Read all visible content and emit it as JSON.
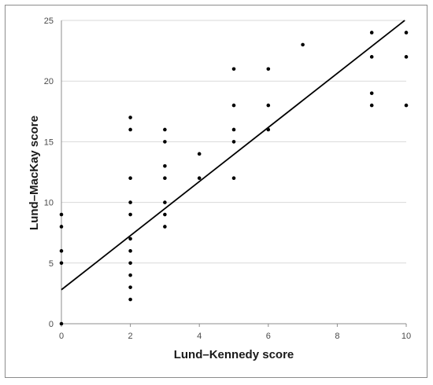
{
  "chart_data": {
    "type": "scatter",
    "title": "",
    "xlabel": "Lund–Kennedy score",
    "ylabel": "Lund–MacKay score",
    "xlim": [
      0,
      10
    ],
    "ylim": [
      0,
      25
    ],
    "xticks": [
      0,
      2,
      4,
      6,
      8,
      10
    ],
    "yticks": [
      0,
      5,
      10,
      15,
      20,
      25
    ],
    "grid": "horizontal",
    "legend": "none",
    "colors": {
      "points": "#000000",
      "line": "#000000",
      "grid": "#d9d9d9",
      "axis": "#8c8c8c"
    },
    "points": [
      {
        "x": 0,
        "y": 0
      },
      {
        "x": 0,
        "y": 5
      },
      {
        "x": 0,
        "y": 6
      },
      {
        "x": 0,
        "y": 8
      },
      {
        "x": 0,
        "y": 9
      },
      {
        "x": 2,
        "y": 2
      },
      {
        "x": 2,
        "y": 3
      },
      {
        "x": 2,
        "y": 4
      },
      {
        "x": 2,
        "y": 5
      },
      {
        "x": 2,
        "y": 6
      },
      {
        "x": 2,
        "y": 7
      },
      {
        "x": 2,
        "y": 9
      },
      {
        "x": 2,
        "y": 10
      },
      {
        "x": 2,
        "y": 12
      },
      {
        "x": 2,
        "y": 16
      },
      {
        "x": 2,
        "y": 17
      },
      {
        "x": 3,
        "y": 8
      },
      {
        "x": 3,
        "y": 9
      },
      {
        "x": 3,
        "y": 10
      },
      {
        "x": 3,
        "y": 12
      },
      {
        "x": 3,
        "y": 13
      },
      {
        "x": 3,
        "y": 15
      },
      {
        "x": 3,
        "y": 16
      },
      {
        "x": 4,
        "y": 12
      },
      {
        "x": 4,
        "y": 14
      },
      {
        "x": 5,
        "y": 12
      },
      {
        "x": 5,
        "y": 15
      },
      {
        "x": 5,
        "y": 16
      },
      {
        "x": 5,
        "y": 18
      },
      {
        "x": 5,
        "y": 21
      },
      {
        "x": 6,
        "y": 16
      },
      {
        "x": 6,
        "y": 18
      },
      {
        "x": 6,
        "y": 21
      },
      {
        "x": 7,
        "y": 23
      },
      {
        "x": 9,
        "y": 18
      },
      {
        "x": 9,
        "y": 19
      },
      {
        "x": 9,
        "y": 22
      },
      {
        "x": 9,
        "y": 24
      },
      {
        "x": 10,
        "y": 18
      },
      {
        "x": 10,
        "y": 22
      },
      {
        "x": 10,
        "y": 24
      }
    ],
    "trendline": {
      "intercept": 2.8,
      "slope": 2.23
    }
  }
}
